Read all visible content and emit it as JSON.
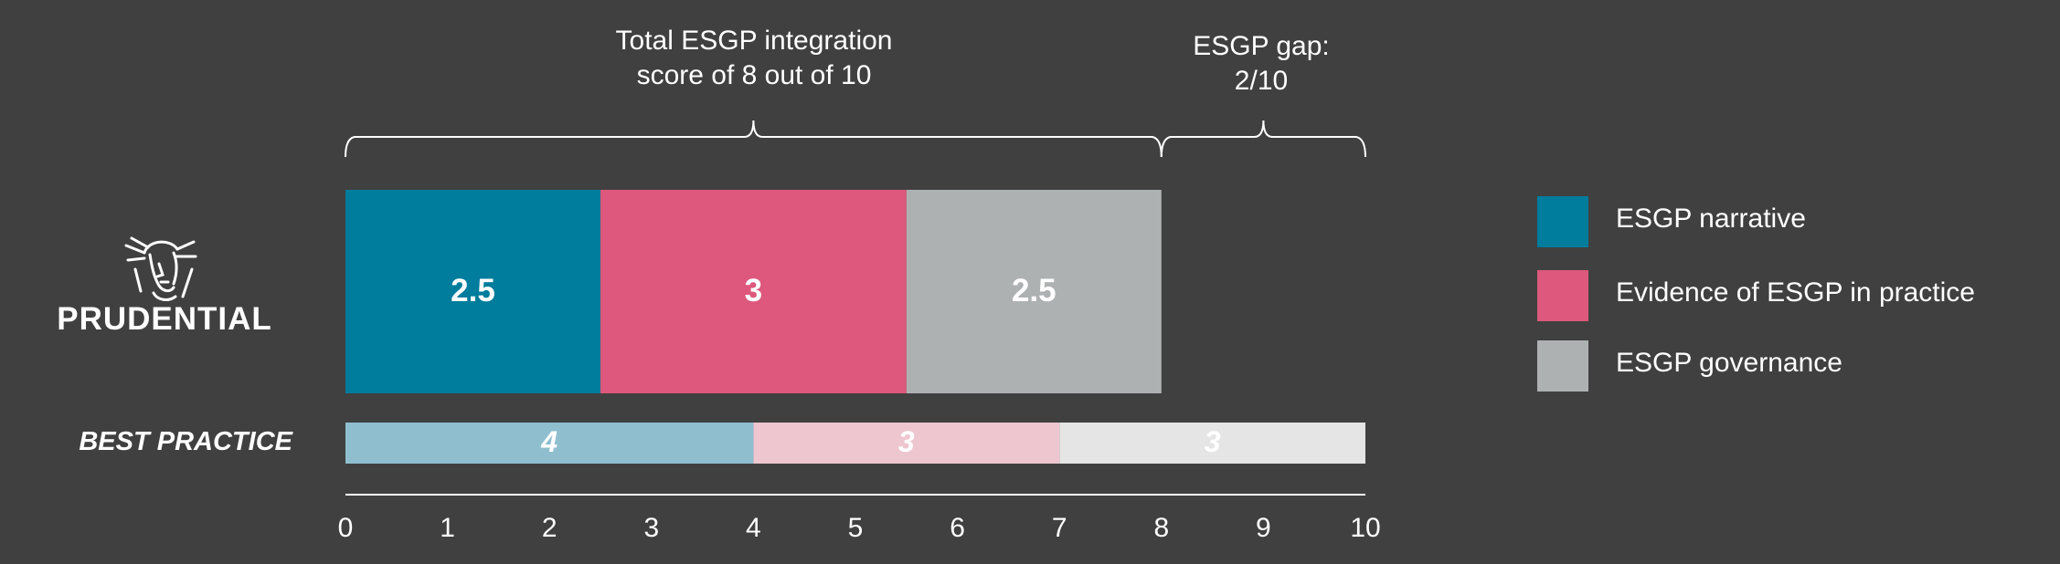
{
  "brand": {
    "name": "PRUDENTIAL",
    "logo_icon": "prudence-head-icon"
  },
  "annotations": {
    "total": "Total ESGP integration\nscore of 8 out of 10",
    "gap": "ESGP gap:\n2/10"
  },
  "best_practice_label": "BEST PRACTICE",
  "chart_data": {
    "type": "bar",
    "orientation": "horizontal",
    "stacked": true,
    "x_range": [
      0,
      10
    ],
    "x_ticks": [
      0,
      1,
      2,
      3,
      4,
      5,
      6,
      7,
      8,
      9,
      10
    ],
    "categories": [
      "PRUDENTIAL",
      "BEST PRACTICE"
    ],
    "series": [
      {
        "name": "ESGP narrative",
        "values": [
          2.5,
          4
        ],
        "color": "#007c9c",
        "light_color": "#8fbfcf"
      },
      {
        "name": "Evidence of ESGP in practice",
        "values": [
          3,
          3
        ],
        "color": "#dd587c",
        "light_color": "#edc6cf"
      },
      {
        "name": "ESGP governance",
        "values": [
          2.5,
          3
        ],
        "color": "#aeb1b2",
        "light_color": "#e6e5e6"
      }
    ],
    "value_labels": [
      [
        "2.5",
        "3",
        "2.5"
      ],
      [
        "4",
        "3",
        "3"
      ]
    ],
    "annotations": [
      {
        "text": "Total ESGP integration score of 8 out of 10",
        "from": 0,
        "to": 8
      },
      {
        "text": "ESGP gap: 2/10",
        "from": 8,
        "to": 10
      }
    ],
    "legend_position": "right",
    "grid": false
  }
}
